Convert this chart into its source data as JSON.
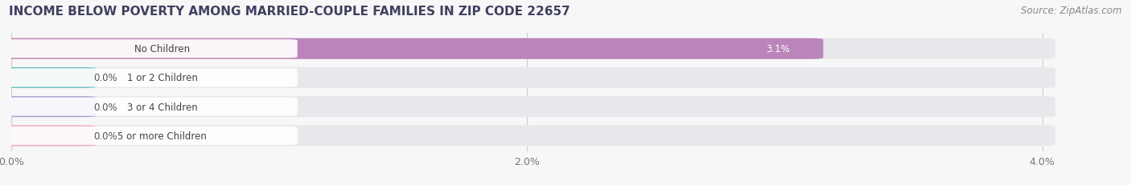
{
  "title": "INCOME BELOW POVERTY AMONG MARRIED-COUPLE FAMILIES IN ZIP CODE 22657",
  "source": "Source: ZipAtlas.com",
  "categories": [
    "No Children",
    "1 or 2 Children",
    "3 or 4 Children",
    "5 or more Children"
  ],
  "values": [
    3.1,
    0.0,
    0.0,
    0.0
  ],
  "bar_colors": [
    "#b57ab5",
    "#5bbcb8",
    "#9999cc",
    "#f4a0b5"
  ],
  "xlim": [
    0,
    4.3
  ],
  "data_max": 4.0,
  "xticks": [
    0.0,
    2.0,
    4.0
  ],
  "xtick_labels": [
    "0.0%",
    "2.0%",
    "4.0%"
  ],
  "value_labels": [
    "3.1%",
    "0.0%",
    "0.0%",
    "0.0%"
  ],
  "background_color": "#f7f7f7",
  "bar_background_color": "#e8e8ec",
  "title_fontsize": 11,
  "source_fontsize": 8.5,
  "title_color": "#404060",
  "source_color": "#888888"
}
